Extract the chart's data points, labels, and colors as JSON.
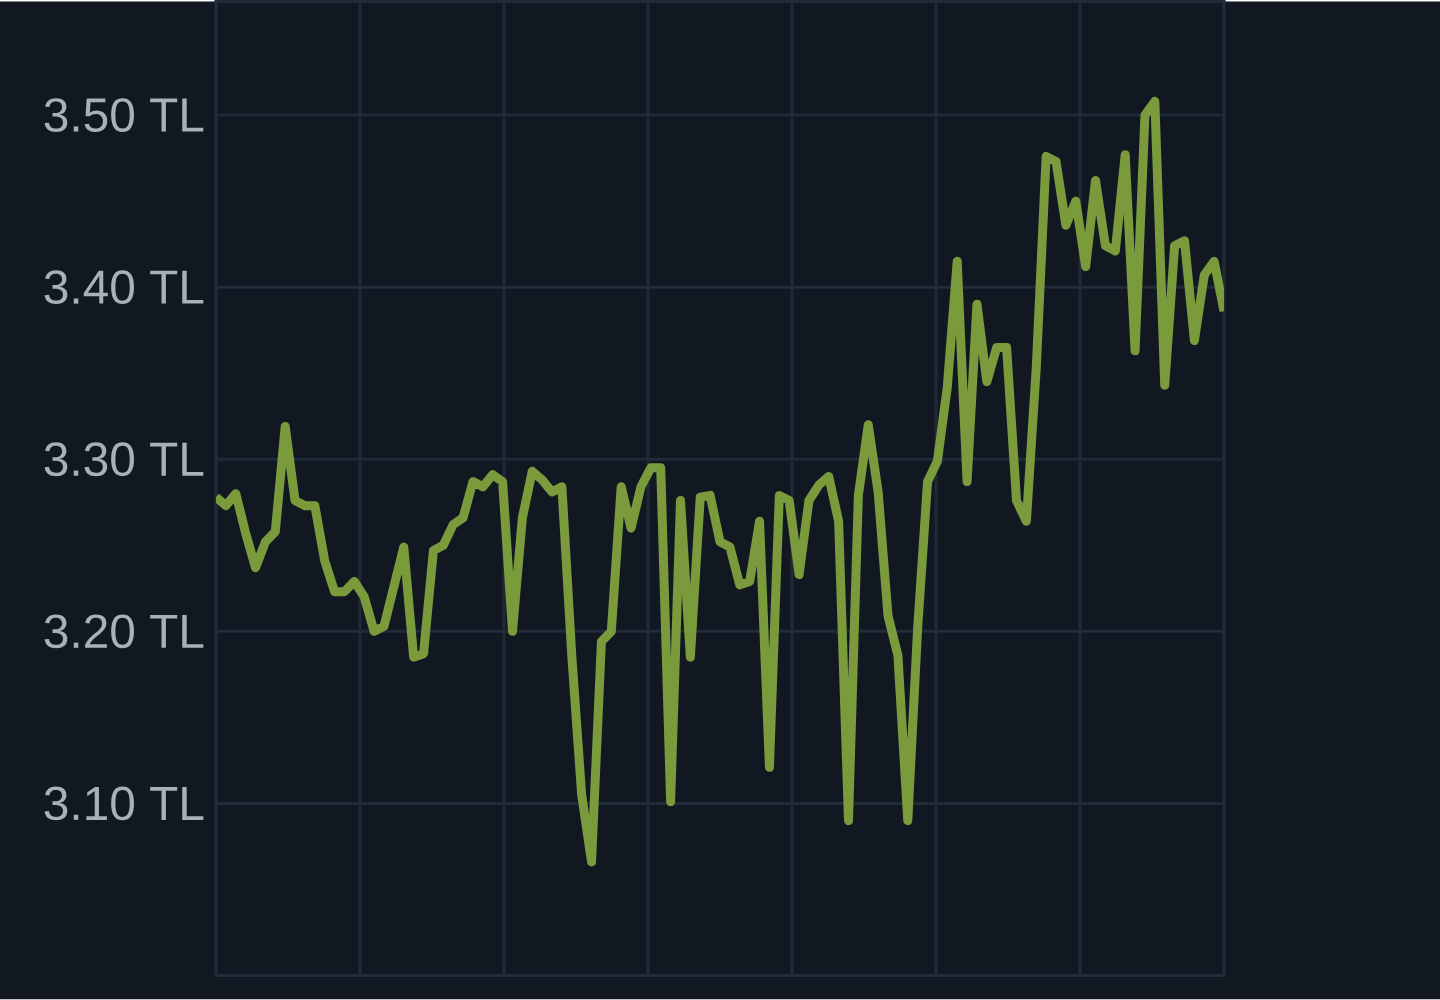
{
  "chart_data": {
    "type": "line",
    "categories": [
      null,
      null,
      null,
      null,
      null,
      null,
      null,
      null,
      null,
      null,
      null,
      null,
      null,
      null,
      null,
      null,
      null,
      null,
      null,
      null,
      null,
      null,
      null,
      null,
      null,
      null,
      null,
      null,
      null,
      null,
      null,
      null,
      null,
      null,
      null,
      null,
      null,
      null,
      null,
      null,
      null,
      null,
      null,
      null,
      null,
      null,
      null,
      null,
      null,
      null,
      null,
      null,
      null,
      null,
      null,
      null,
      null,
      null,
      null,
      null,
      null,
      null,
      null,
      null,
      null,
      null,
      null,
      null,
      null,
      null,
      null,
      null,
      null,
      null,
      null,
      null,
      null,
      null,
      null,
      null,
      null,
      null,
      null,
      null,
      null,
      null,
      null,
      null,
      null,
      null,
      null,
      null,
      null,
      null,
      null,
      null,
      null,
      null,
      null,
      null,
      null,
      null,
      null
    ],
    "series": [
      {
        "color": "#7a9a3c",
        "values": [
          3.278,
          3.273,
          3.28,
          3.257,
          3.237,
          3.252,
          3.258,
          3.319,
          3.276,
          3.273,
          3.273,
          3.241,
          3.223,
          3.223,
          3.229,
          3.22,
          3.2,
          3.203,
          3.226,
          3.249,
          3.185,
          3.187,
          3.247,
          3.25,
          3.262,
          3.266,
          3.287,
          3.284,
          3.291,
          3.287,
          3.2,
          3.266,
          3.293,
          3.288,
          3.281,
          3.284,
          3.186,
          3.105,
          3.066,
          3.194,
          3.2,
          3.284,
          3.26,
          3.284,
          3.295,
          3.295,
          3.101,
          3.276,
          3.185,
          3.278,
          3.279,
          3.252,
          3.249,
          3.227,
          3.229,
          3.264,
          3.121,
          3.279,
          3.276,
          3.233,
          3.276,
          3.285,
          3.29,
          3.264,
          3.09,
          3.279,
          3.32,
          3.281,
          3.209,
          3.186,
          3.09,
          3.202,
          3.287,
          3.299,
          3.342,
          3.415,
          3.287,
          3.39,
          3.345,
          3.365,
          3.365,
          3.276,
          3.264,
          3.353,
          3.476,
          3.473,
          3.436,
          3.45,
          3.412,
          3.462,
          3.424,
          3.421,
          3.477,
          3.363,
          3.5,
          3.508,
          3.343,
          3.424,
          3.427,
          3.369,
          3.407,
          3.415,
          3.386
        ]
      }
    ],
    "ylim": [
      3.0,
      3.566
    ],
    "yticks": [
      {
        "value": 3.1,
        "label": "3.10 TL"
      },
      {
        "value": 3.2,
        "label": "3.20 TL"
      },
      {
        "value": 3.3,
        "label": "3.30 TL"
      },
      {
        "value": 3.4,
        "label": "3.40 TL"
      },
      {
        "value": 3.5,
        "label": "3.50 TL"
      }
    ],
    "tick_labels": "y",
    "grid": true,
    "marker": "none",
    "line_style": "solid"
  }
}
